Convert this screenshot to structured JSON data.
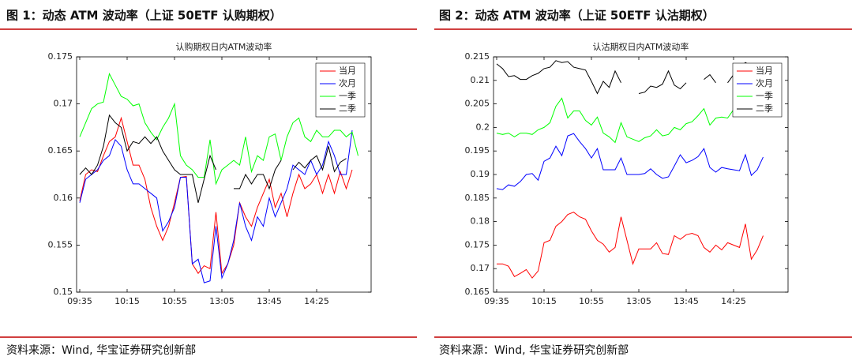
{
  "chart_data": [
    {
      "type": "line",
      "figure_title": "图 1：动态 ATM 波动率（上证 50ETF 认购期权）",
      "title": "认购期权日内ATM波动率",
      "source": "资料来源：Wind, 华宝证券研究创新部",
      "categories": [
        "09:35",
        null,
        null,
        null,
        null,
        null,
        null,
        null,
        "10:15",
        null,
        null,
        null,
        null,
        null,
        null,
        null,
        "10:55",
        null,
        null,
        null,
        null,
        null,
        null,
        null,
        "13:05",
        null,
        null,
        null,
        null,
        null,
        null,
        null,
        "13:45",
        null,
        null,
        null,
        null,
        null,
        null,
        null,
        "14:25",
        null,
        null,
        null,
        null,
        null,
        null,
        null
      ],
      "ylim": [
        0.15,
        0.175
      ],
      "yticks": [
        0.15,
        0.155,
        0.16,
        0.165,
        0.17,
        0.175
      ],
      "legend": "top-right",
      "grid": false,
      "series": [
        {
          "name": "当月",
          "color": "#ff0000",
          "values": [
            0.1597,
            0.1625,
            0.163,
            0.1628,
            0.1645,
            0.166,
            0.1665,
            0.1685,
            0.166,
            0.1635,
            0.1635,
            0.162,
            0.159,
            0.157,
            0.1555,
            0.157,
            0.1595,
            0.1622,
            0.1623,
            0.153,
            0.152,
            0.1528,
            0.1525,
            0.1585,
            0.152,
            0.153,
            0.155,
            0.1595,
            0.158,
            0.157,
            0.159,
            0.1605,
            0.162,
            0.159,
            0.1605,
            0.158,
            0.1605,
            0.1625,
            0.161,
            0.1615,
            0.1625,
            0.1605,
            0.1625,
            0.1605,
            0.1628,
            0.161,
            0.163,
            null
          ]
        },
        {
          "name": "次月",
          "color": "#0000ff",
          "values": [
            0.1595,
            0.162,
            0.1625,
            0.163,
            0.164,
            0.1645,
            0.1662,
            0.1655,
            0.163,
            0.1615,
            0.1615,
            0.161,
            0.1605,
            0.16,
            0.1565,
            0.1575,
            0.159,
            0.1622,
            0.1622,
            0.153,
            0.1535,
            0.151,
            0.1512,
            0.157,
            0.1515,
            0.153,
            0.1555,
            0.1595,
            0.157,
            0.1555,
            0.158,
            0.157,
            0.16,
            0.158,
            0.1595,
            0.161,
            0.1635,
            0.163,
            0.1625,
            0.164,
            0.1625,
            0.1635,
            0.166,
            0.1645,
            0.1625,
            0.1625,
            0.1672,
            null
          ]
        },
        {
          "name": "一季",
          "color": "#00ff00",
          "values": [
            0.1665,
            0.168,
            0.1695,
            0.17,
            0.1702,
            0.1732,
            0.172,
            0.1708,
            0.1705,
            0.1698,
            0.17,
            0.168,
            0.167,
            0.1662,
            0.1675,
            0.1685,
            0.17,
            0.1645,
            0.1635,
            0.163,
            0.1622,
            0.1622,
            0.1662,
            0.1615,
            0.163,
            0.1635,
            0.164,
            0.1635,
            0.1665,
            0.1628,
            0.1645,
            0.164,
            0.1665,
            0.1668,
            0.164,
            0.1665,
            0.168,
            0.1685,
            0.1665,
            0.166,
            0.1672,
            0.1665,
            0.1665,
            0.1672,
            0.1672,
            0.1665,
            0.167,
            0.1645
          ]
        },
        {
          "name": "二季",
          "color": "#000000",
          "values": [
            0.1625,
            0.1632,
            0.1625,
            0.1635,
            0.1655,
            0.1688,
            0.168,
            0.1675,
            0.165,
            0.166,
            0.1658,
            0.1665,
            0.1658,
            0.1665,
            0.165,
            0.164,
            0.163,
            0.1625,
            0.1625,
            0.1625,
            0.1595,
            0.162,
            0.1645,
            0.163,
            null,
            null,
            0.161,
            0.161,
            0.1625,
            0.1615,
            0.1625,
            0.1625,
            0.161,
            0.163,
            0.164,
            null,
            0.163,
            0.1638,
            0.1632,
            0.164,
            0.1645,
            0.163,
            0.1655,
            0.1628,
            0.1638,
            0.1642,
            null,
            null
          ]
        }
      ]
    },
    {
      "type": "line",
      "figure_title": "图 2：动态 ATM 波动率（上证 50ETF 认沽期权）",
      "title": "认沽期权日内ATM波动率",
      "source": "资料来源：Wind, 华宝证券研究创新部",
      "categories": [
        "09:35",
        null,
        null,
        null,
        null,
        null,
        null,
        null,
        "10:15",
        null,
        null,
        null,
        null,
        null,
        null,
        null,
        "10:55",
        null,
        null,
        null,
        null,
        null,
        null,
        null,
        "13:05",
        null,
        null,
        null,
        null,
        null,
        null,
        null,
        "13:45",
        null,
        null,
        null,
        null,
        null,
        null,
        null,
        "14:25",
        null,
        null,
        null,
        null,
        null,
        null,
        null
      ],
      "ylim": [
        0.165,
        0.215
      ],
      "yticks": [
        0.165,
        0.17,
        0.175,
        0.18,
        0.185,
        0.19,
        0.195,
        0.2,
        0.205,
        0.21,
        0.215
      ],
      "legend": "top-right",
      "grid": false,
      "series": [
        {
          "name": "当月",
          "color": "#ff0000",
          "values": [
            0.171,
            0.171,
            0.1705,
            0.1683,
            0.169,
            0.1698,
            0.168,
            0.1695,
            0.1755,
            0.176,
            0.179,
            0.18,
            0.1815,
            0.182,
            0.181,
            0.1805,
            0.178,
            0.176,
            0.1752,
            0.1735,
            0.1745,
            0.181,
            0.176,
            0.171,
            0.1742,
            0.1742,
            0.1742,
            0.1755,
            0.1732,
            0.173,
            0.177,
            0.1762,
            0.1772,
            0.1775,
            0.177,
            0.1745,
            0.1735,
            0.175,
            0.174,
            0.1755,
            0.175,
            0.1745,
            0.1795,
            0.172,
            0.174,
            0.177,
            null,
            null
          ]
        },
        {
          "name": "次月",
          "color": "#0000ff",
          "values": [
            0.187,
            0.1868,
            0.1878,
            0.1875,
            0.1885,
            0.19,
            0.1902,
            0.1888,
            0.1928,
            0.1935,
            0.196,
            0.194,
            0.1982,
            0.1987,
            0.197,
            0.1955,
            0.1935,
            0.1955,
            0.191,
            0.191,
            0.191,
            0.1935,
            0.19,
            0.19,
            0.19,
            0.1902,
            0.1912,
            0.19,
            0.1892,
            0.1895,
            0.1918,
            0.1942,
            0.1925,
            0.193,
            0.1938,
            0.1955,
            0.1915,
            0.1905,
            0.1915,
            0.1912,
            0.191,
            0.1908,
            0.1942,
            0.1898,
            0.191,
            0.1937,
            null,
            null
          ]
        },
        {
          "name": "一季",
          "color": "#00ff00",
          "values": [
            0.1988,
            0.1985,
            0.1988,
            0.198,
            0.1988,
            0.1988,
            0.1985,
            0.1995,
            0.2,
            0.201,
            0.2045,
            0.2062,
            0.202,
            0.2035,
            0.2035,
            0.2015,
            0.2005,
            0.2022,
            0.1988,
            0.198,
            0.1968,
            0.201,
            0.198,
            0.1975,
            0.197,
            0.1978,
            0.1982,
            0.1995,
            0.1982,
            0.1985,
            0.2,
            0.1995,
            0.2008,
            0.2012,
            0.2025,
            0.204,
            0.2005,
            0.202,
            0.2022,
            0.202,
            0.2038,
            0.2035,
            0.2048,
            0.2048,
            0.2055,
            0.206,
            null,
            null
          ]
        },
        {
          "name": "二季",
          "color": "#000000",
          "values": [
            0.2135,
            0.2125,
            0.2108,
            0.211,
            0.2102,
            0.2102,
            0.211,
            0.2115,
            0.2125,
            0.2128,
            0.2142,
            0.2138,
            0.214,
            0.2128,
            0.2125,
            0.2122,
            0.2098,
            0.2072,
            0.2098,
            0.2085,
            0.212,
            0.2095,
            null,
            null,
            0.2072,
            0.2075,
            0.2088,
            0.2085,
            0.2092,
            0.212,
            0.209,
            0.2082,
            0.2095,
            null,
            null,
            0.2102,
            0.2112,
            0.2095,
            null,
            0.2095,
            0.2112,
            0.2125,
            0.2138,
            0.213,
            0.2125,
            0.213,
            null,
            null
          ]
        }
      ]
    }
  ]
}
